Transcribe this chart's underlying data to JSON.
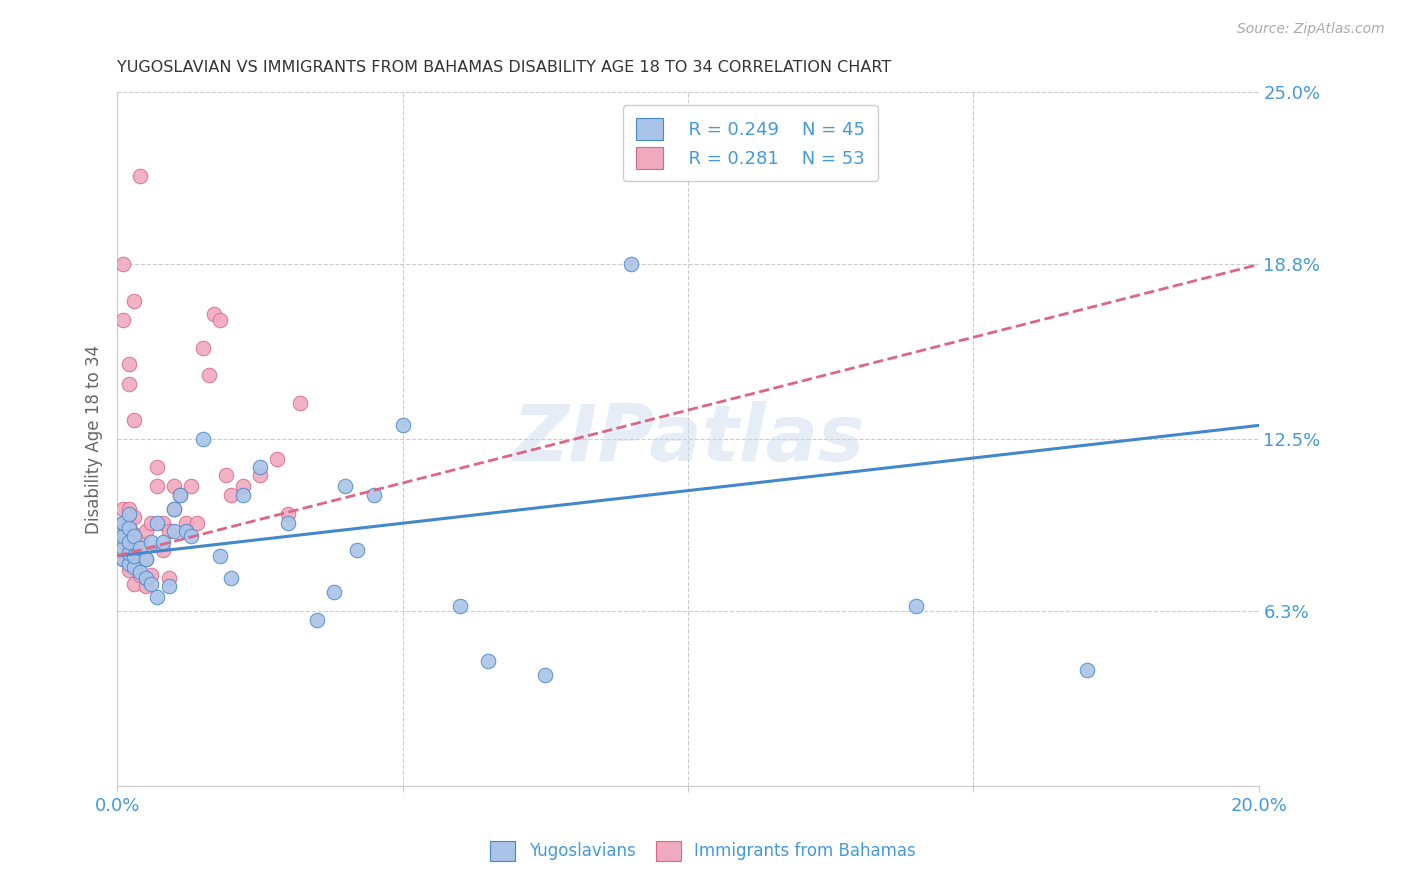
{
  "title": "YUGOSLAVIAN VS IMMIGRANTS FROM BAHAMAS DISABILITY AGE 18 TO 34 CORRELATION CHART",
  "source": "Source: ZipAtlas.com",
  "ylabel": "Disability Age 18 to 34",
  "xlim": [
    0.0,
    0.2
  ],
  "ylim": [
    0.0,
    0.25
  ],
  "xticks": [
    0.0,
    0.05,
    0.1,
    0.15,
    0.2
  ],
  "xtick_labels": [
    "0.0%",
    "",
    "",
    "",
    "20.0%"
  ],
  "ytick_labels_right": [
    "25.0%",
    "18.8%",
    "12.5%",
    "6.3%",
    ""
  ],
  "yticks_right": [
    0.25,
    0.188,
    0.125,
    0.063,
    0.0
  ],
  "watermark": "ZIPatlas",
  "legend_labels": [
    "Yugoslavians",
    "Immigrants from Bahamas"
  ],
  "blue_color": "#aac4e8",
  "pink_color": "#f0aac0",
  "blue_line_color": "#4488cc",
  "pink_line_color": "#dd6688",
  "axis_label_color": "#4499dd",
  "legend_r1": "R = 0.249",
  "legend_n1": "N = 45",
  "legend_r2": "R = 0.281",
  "legend_n2": "N = 53",
  "yug_x": [
    0.001,
    0.001,
    0.001,
    0.001,
    0.002,
    0.002,
    0.002,
    0.002,
    0.002,
    0.003,
    0.003,
    0.003,
    0.004,
    0.004,
    0.005,
    0.005,
    0.006,
    0.006,
    0.007,
    0.007,
    0.008,
    0.009,
    0.01,
    0.01,
    0.011,
    0.012,
    0.013,
    0.015,
    0.018,
    0.02,
    0.022,
    0.025,
    0.03,
    0.035,
    0.038,
    0.04,
    0.042,
    0.045,
    0.05,
    0.06,
    0.065,
    0.075,
    0.09,
    0.14,
    0.17
  ],
  "yug_y": [
    0.082,
    0.086,
    0.09,
    0.095,
    0.08,
    0.084,
    0.088,
    0.093,
    0.098,
    0.079,
    0.083,
    0.09,
    0.077,
    0.086,
    0.075,
    0.082,
    0.073,
    0.088,
    0.068,
    0.095,
    0.088,
    0.072,
    0.092,
    0.1,
    0.105,
    0.092,
    0.09,
    0.125,
    0.083,
    0.075,
    0.105,
    0.115,
    0.095,
    0.06,
    0.07,
    0.108,
    0.085,
    0.105,
    0.13,
    0.065,
    0.045,
    0.04,
    0.188,
    0.065,
    0.042
  ],
  "bah_x": [
    0.001,
    0.001,
    0.001,
    0.001,
    0.001,
    0.002,
    0.002,
    0.002,
    0.002,
    0.002,
    0.002,
    0.003,
    0.003,
    0.003,
    0.003,
    0.003,
    0.004,
    0.004,
    0.005,
    0.005,
    0.005,
    0.006,
    0.006,
    0.007,
    0.007,
    0.008,
    0.008,
    0.009,
    0.009,
    0.01,
    0.01,
    0.011,
    0.012,
    0.013,
    0.014,
    0.015,
    0.016,
    0.017,
    0.018,
    0.019,
    0.02,
    0.022,
    0.025,
    0.028,
    0.03,
    0.032,
    0.004,
    0.003,
    0.002,
    0.001,
    0.001,
    0.002,
    0.003
  ],
  "bah_y": [
    0.088,
    0.092,
    0.095,
    0.1,
    0.082,
    0.078,
    0.083,
    0.086,
    0.09,
    0.095,
    0.1,
    0.073,
    0.08,
    0.086,
    0.091,
    0.097,
    0.076,
    0.088,
    0.072,
    0.082,
    0.092,
    0.076,
    0.095,
    0.108,
    0.115,
    0.085,
    0.095,
    0.075,
    0.092,
    0.1,
    0.108,
    0.105,
    0.095,
    0.108,
    0.095,
    0.158,
    0.148,
    0.17,
    0.168,
    0.112,
    0.105,
    0.108,
    0.112,
    0.118,
    0.098,
    0.138,
    0.22,
    0.175,
    0.152,
    0.188,
    0.168,
    0.145,
    0.132
  ]
}
